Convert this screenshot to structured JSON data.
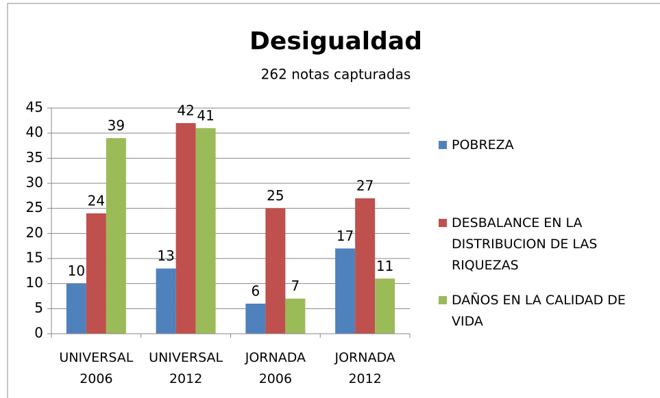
{
  "chart_data": {
    "type": "bar",
    "title": "Desigualdad",
    "subtitle": "262 notas capturadas",
    "categories": [
      "UNIVERSAL 2006",
      "UNIVERSAL 2012",
      "JORNADA 2006",
      "JORNADA 2012"
    ],
    "series": [
      {
        "name": "POBREZA",
        "color": "#4f81bd",
        "values": [
          10,
          13,
          6,
          17
        ]
      },
      {
        "name": "DESBALANCE EN LA DISTRIBUCION DE LAS RIQUEZAS",
        "color": "#c0504d",
        "values": [
          24,
          42,
          25,
          27
        ]
      },
      {
        "name": "DAÑOS EN LA CALIDAD DE VIDA",
        "color": "#9bbb59",
        "values": [
          39,
          41,
          7,
          11
        ]
      }
    ],
    "ylim": [
      0,
      45
    ],
    "yticks": [
      0,
      5,
      10,
      15,
      20,
      25,
      30,
      35,
      40,
      45
    ],
    "grid": true,
    "legend": "right"
  }
}
